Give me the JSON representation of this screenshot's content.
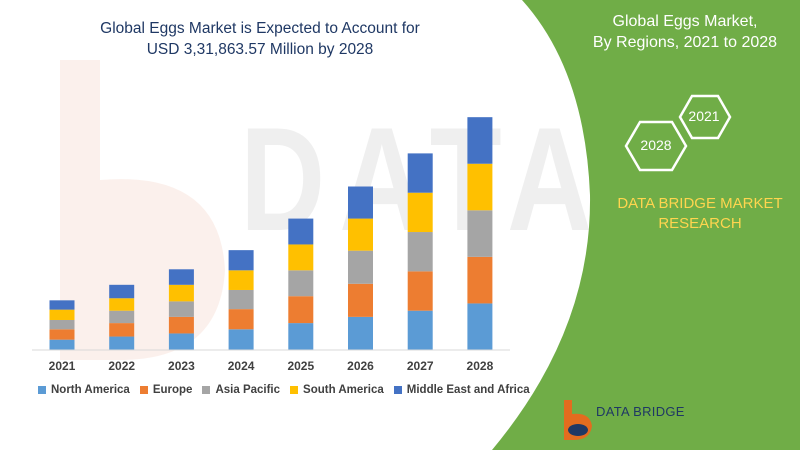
{
  "title_lines": [
    "Global Eggs Market is Expected to Account for",
    "USD 3,31,863.57 Million by 2028"
  ],
  "panel": {
    "title_lines": [
      "Global Eggs Market,",
      "By Regions, 2021 to 2028"
    ],
    "hex_labels": [
      "2021",
      "2028"
    ],
    "brand_lines": [
      "DATA BRIDGE MARKET",
      "RESEARCH"
    ],
    "background_color": "#70ad47"
  },
  "watermark": {
    "text": "DATA BRIDGE"
  },
  "logo": {
    "text": "DATA BRIDGE"
  },
  "chart_data": {
    "type": "bar",
    "stacked": true,
    "categories": [
      "2021",
      "2022",
      "2023",
      "2024",
      "2025",
      "2026",
      "2027",
      "2028"
    ],
    "series": [
      {
        "name": "North America",
        "color": "#5b9bd5",
        "values": [
          10,
          13,
          16,
          20,
          26,
          32,
          38,
          45
        ]
      },
      {
        "name": "Europe",
        "color": "#ed7d31",
        "values": [
          10,
          13,
          16,
          19.5,
          26,
          32,
          38,
          45
        ]
      },
      {
        "name": "Asia Pacific",
        "color": "#a5a5a5",
        "values": [
          9,
          12,
          15,
          18.5,
          25,
          32,
          38,
          45
        ]
      },
      {
        "name": "South America",
        "color": "#ffc000",
        "values": [
          10,
          12,
          16,
          19,
          25,
          31,
          38,
          45
        ]
      },
      {
        "name": "Middle East and Africa",
        "color": "#4472c4",
        "values": [
          9,
          13,
          15,
          19.5,
          25,
          31,
          38,
          45
        ]
      }
    ],
    "xlabel": "",
    "ylabel": "",
    "ylim": [
      0,
      230
    ],
    "yaxis_visible": false,
    "grid": false,
    "legend_position": "bottom"
  }
}
